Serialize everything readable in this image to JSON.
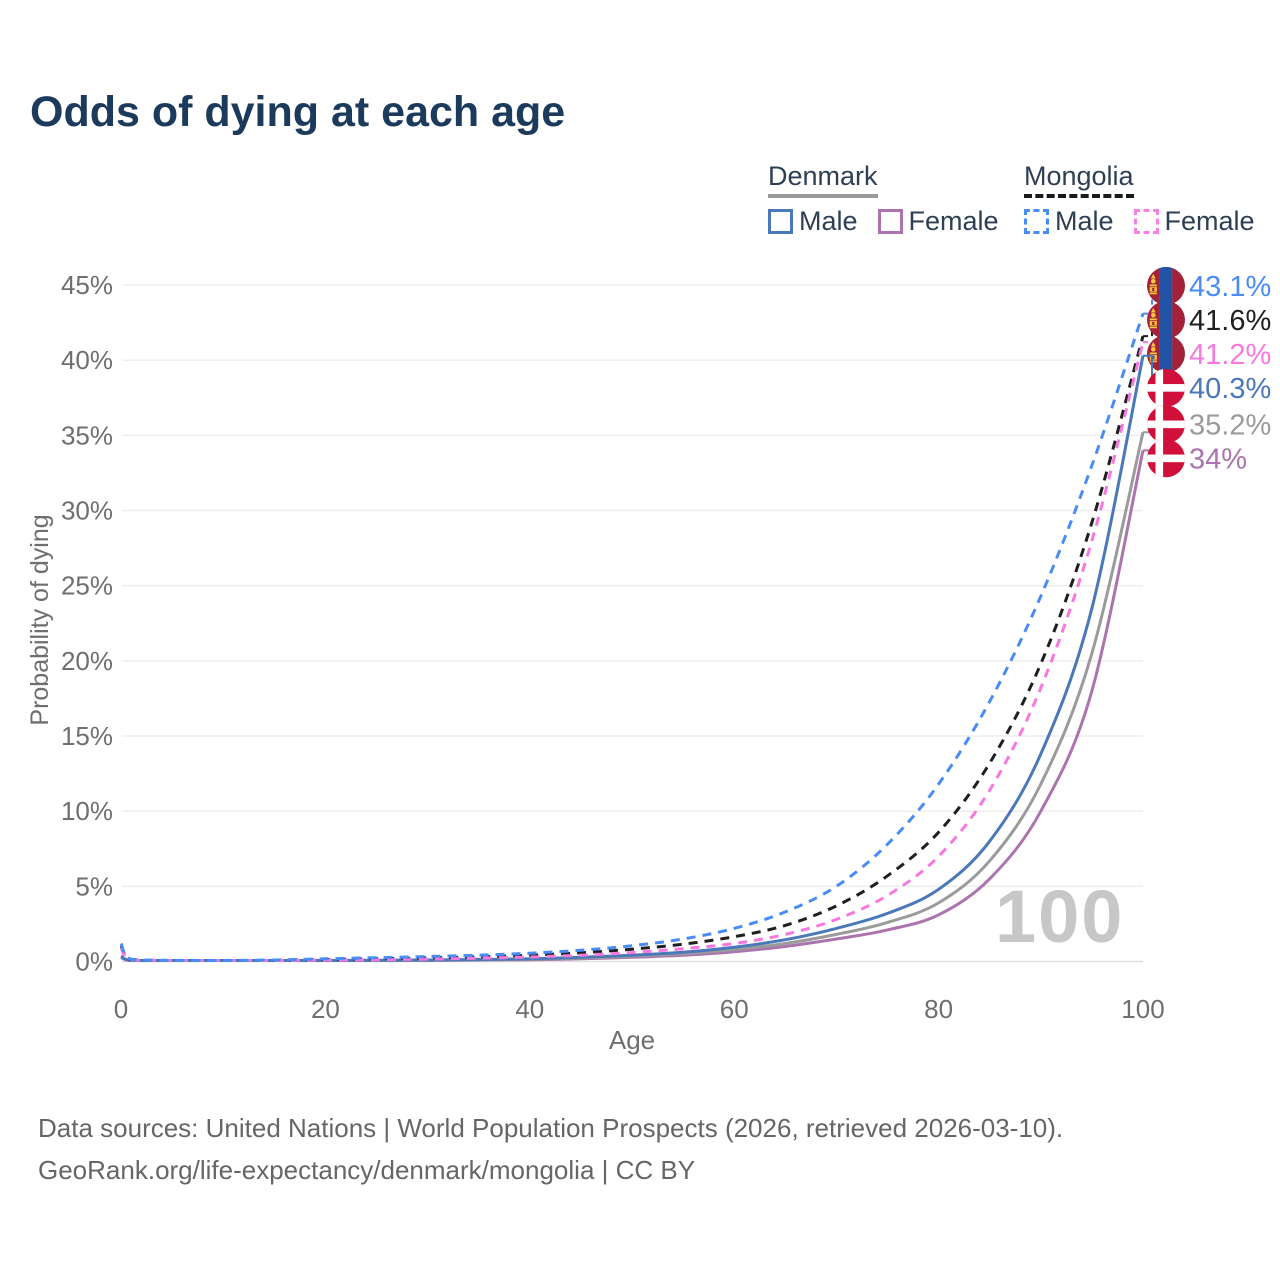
{
  "title": "Odds of dying at each age",
  "watermark": "100",
  "legend": {
    "groups": [
      {
        "name": "Denmark",
        "style": "solid",
        "underline_color": "#9a9a9a",
        "items": [
          {
            "label": "Male",
            "color": "#4a78b8"
          },
          {
            "label": "Female",
            "color": "#ab74ae"
          }
        ]
      },
      {
        "name": "Mongolia",
        "style": "dashed",
        "underline_color": "#1a1a1a",
        "items": [
          {
            "label": "Male",
            "color": "#4a8cf5"
          },
          {
            "label": "Female",
            "color": "#fb80e3"
          }
        ]
      }
    ]
  },
  "chart_data": {
    "type": "line",
    "title": "Odds of dying at each age",
    "xlabel": "Age",
    "ylabel": "Probability of dying",
    "xlim": [
      0,
      100
    ],
    "ylim": [
      0,
      45
    ],
    "x_ticks": [
      0,
      20,
      40,
      60,
      80,
      100
    ],
    "y_ticks": [
      0,
      5,
      10,
      15,
      20,
      25,
      30,
      35,
      40,
      45
    ],
    "y_tick_suffix": "%",
    "grid": "horizontal",
    "legend_position": "top-right",
    "x": [
      0,
      1,
      5,
      10,
      15,
      20,
      25,
      30,
      35,
      40,
      45,
      50,
      55,
      60,
      65,
      70,
      75,
      80,
      85,
      90,
      95,
      100
    ],
    "series": [
      {
        "name": "Denmark Female",
        "country": "Denmark",
        "sex": "Female",
        "color": "#ab74ae",
        "dashed": false,
        "end_label": "34%",
        "flag": "denmark",
        "values": [
          0.28,
          0.025,
          0.012,
          0.009,
          0.02,
          0.035,
          0.05,
          0.065,
          0.09,
          0.12,
          0.18,
          0.28,
          0.42,
          0.65,
          1.0,
          1.5,
          2.1,
          3.1,
          5.5,
          10.0,
          18.0,
          34.0
        ]
      },
      {
        "name": "Denmark Both sexes",
        "country": "Denmark",
        "sex": "Both sexes",
        "color": "#9b9b9b",
        "dashed": false,
        "end_label": "35.2%",
        "flag": "denmark",
        "values": [
          0.32,
          0.028,
          0.013,
          0.01,
          0.025,
          0.05,
          0.065,
          0.085,
          0.11,
          0.15,
          0.23,
          0.35,
          0.52,
          0.8,
          1.2,
          1.8,
          2.6,
          3.9,
          6.7,
          11.8,
          20.5,
          35.2
        ]
      },
      {
        "name": "Denmark Male",
        "country": "Denmark",
        "sex": "Male",
        "color": "#4a78b8",
        "dashed": false,
        "end_label": "40.3%",
        "flag": "denmark",
        "values": [
          0.35,
          0.03,
          0.015,
          0.012,
          0.03,
          0.06,
          0.08,
          0.1,
          0.13,
          0.18,
          0.28,
          0.42,
          0.62,
          0.95,
          1.45,
          2.2,
          3.2,
          4.8,
          8.0,
          13.8,
          23.5,
          40.3
        ]
      },
      {
        "name": "Mongolia Both sexes",
        "country": "Mongolia",
        "sex": "Both sexes",
        "color": "#1f1f1f",
        "dashed": true,
        "end_label": "41.6%",
        "flag": "mongolia",
        "values": [
          1.05,
          0.13,
          0.05,
          0.04,
          0.08,
          0.13,
          0.18,
          0.24,
          0.31,
          0.42,
          0.58,
          0.82,
          1.15,
          1.65,
          2.4,
          3.7,
          5.7,
          8.6,
          13.2,
          19.8,
          29.2,
          41.6
        ]
      },
      {
        "name": "Mongolia Female",
        "country": "Mongolia",
        "sex": "Female",
        "color": "#f878df",
        "dashed": true,
        "end_label": "41.2%",
        "flag": "mongolia",
        "values": [
          0.9,
          0.11,
          0.04,
          0.035,
          0.06,
          0.09,
          0.12,
          0.16,
          0.22,
          0.3,
          0.42,
          0.6,
          0.85,
          1.2,
          1.8,
          2.8,
          4.4,
          7.0,
          11.4,
          18.2,
          28.0,
          41.2
        ]
      },
      {
        "name": "Mongolia Male",
        "country": "Mongolia",
        "sex": "Male",
        "color": "#4a8cf5",
        "dashed": true,
        "end_label": "43.1%",
        "flag": "mongolia",
        "values": [
          1.2,
          0.15,
          0.06,
          0.05,
          0.1,
          0.18,
          0.25,
          0.33,
          0.42,
          0.55,
          0.75,
          1.05,
          1.5,
          2.2,
          3.3,
          5.0,
          7.8,
          11.8,
          17.3,
          24.3,
          33.0,
          43.1
        ]
      }
    ],
    "flag_colors": {
      "denmark_red": "#d0103a",
      "mongolia_red": "#a32139",
      "mongolia_blue": "#2353a5",
      "soyombo_yellow": "#f2c63d"
    }
  },
  "footer": {
    "line1": "Data sources: United Nations | World Population Prospects (2026, retrieved 2026-03-10).",
    "line2": "GeoRank.org/life-expectancy/denmark/mongolia | CC BY"
  }
}
